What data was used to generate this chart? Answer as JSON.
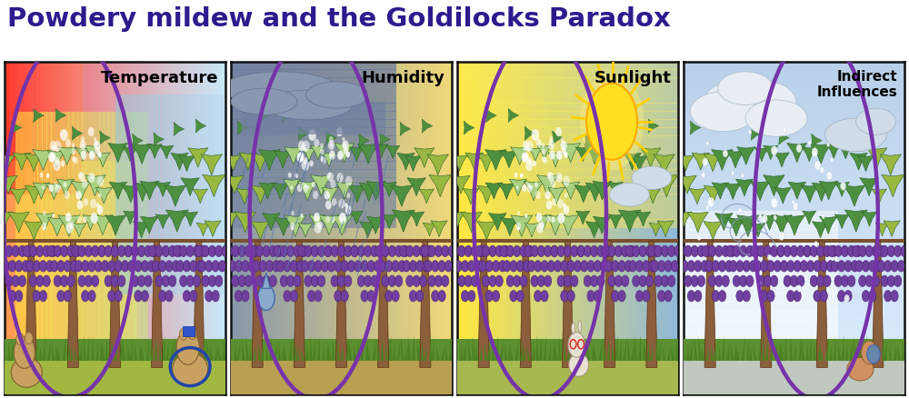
{
  "title": "Powdery mildew and the Goldilocks Paradox",
  "title_color": "#2D1B8E",
  "title_fontsize": 21,
  "title_fontweight": "bold",
  "circle_color": "#7733AA",
  "circle_linewidth": 3.2,
  "figure_bg": "#FFFFFF",
  "panel_labels": [
    "Temperature",
    "Humidity",
    "Sunlight",
    "Indirect\nInfluences"
  ],
  "label_fontsize": 13,
  "border_color": "#111111",
  "outer_border_color": "#333333"
}
